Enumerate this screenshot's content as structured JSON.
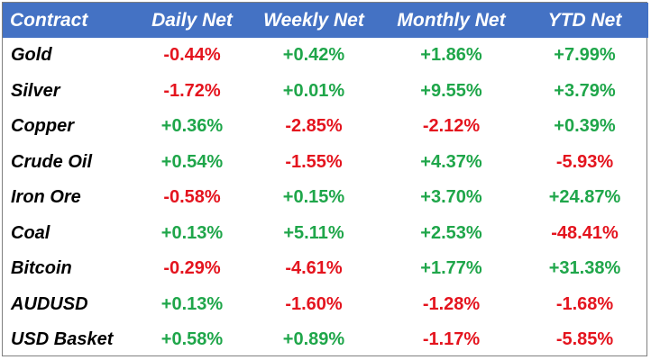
{
  "colors": {
    "header_bg": "#4472c4",
    "header_text": "#ffffff",
    "positive": "#1fa64a",
    "negative": "#e4141e"
  },
  "headers": [
    "Contract",
    "Daily Net",
    "Weekly Net",
    "Monthly Net",
    "YTD Net"
  ],
  "rows": [
    {
      "name": "Gold",
      "daily": "-0.44%",
      "weekly": "+0.42%",
      "monthly": "+1.86%",
      "ytd": "+7.99%"
    },
    {
      "name": "Silver",
      "daily": "-1.72%",
      "weekly": "+0.01%",
      "monthly": "+9.55%",
      "ytd": "+3.79%"
    },
    {
      "name": "Copper",
      "daily": "+0.36%",
      "weekly": "-2.85%",
      "monthly": "-2.12%",
      "ytd": "+0.39%"
    },
    {
      "name": "Crude Oil",
      "daily": "+0.54%",
      "weekly": "-1.55%",
      "monthly": "+4.37%",
      "ytd": "-5.93%"
    },
    {
      "name": "Iron Ore",
      "daily": "-0.58%",
      "weekly": "+0.15%",
      "monthly": "+3.70%",
      "ytd": "+24.87%"
    },
    {
      "name": "Coal",
      "daily": "+0.13%",
      "weekly": "+5.11%",
      "monthly": "+2.53%",
      "ytd": "-48.41%"
    },
    {
      "name": "Bitcoin",
      "daily": "-0.29%",
      "weekly": "-4.61%",
      "monthly": "+1.77%",
      "ytd": "+31.38%"
    },
    {
      "name": "AUDUSD",
      "daily": "+0.13%",
      "weekly": "-1.60%",
      "monthly": "-1.28%",
      "ytd": "-1.68%"
    },
    {
      "name": "USD Basket",
      "daily": "+0.58%",
      "weekly": "+0.89%",
      "monthly": "-1.17%",
      "ytd": "-5.85%"
    }
  ]
}
